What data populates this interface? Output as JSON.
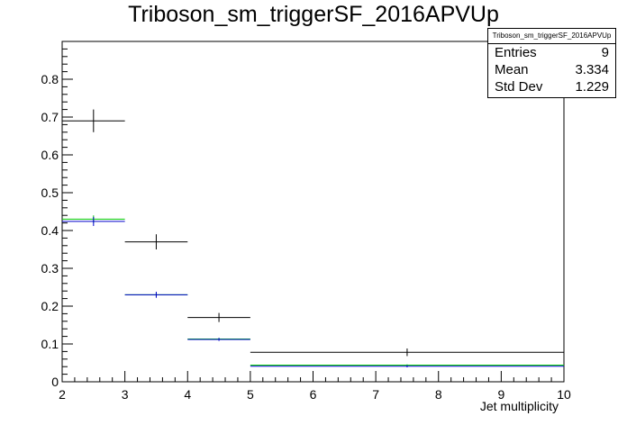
{
  "title": "Triboson_sm_triggerSF_2016APVUp",
  "stats": {
    "name": "Triboson_sm_triggerSF_2016APVUp",
    "rows": [
      {
        "label": "Entries",
        "value": "9"
      },
      {
        "label": "Mean",
        "value": "3.334"
      },
      {
        "label": "Std Dev",
        "value": "1.229"
      }
    ]
  },
  "chart_data": {
    "type": "histogram",
    "title": "Triboson_sm_triggerSF_2016APVUp",
    "xlabel": "Jet multiplicity",
    "ylabel": "",
    "xlim": [
      2,
      10
    ],
    "ylim": [
      0,
      0.9
    ],
    "xticks": [
      "2",
      "3",
      "4",
      "5",
      "6",
      "7",
      "8",
      "9",
      "10"
    ],
    "yticks": [
      "0",
      "0.1",
      "0.2",
      "0.3",
      "0.4",
      "0.5",
      "0.6",
      "0.7",
      "0.8"
    ],
    "bins": [
      [
        2,
        3
      ],
      [
        3,
        4
      ],
      [
        4,
        5
      ],
      [
        5,
        10
      ]
    ],
    "series": [
      {
        "color": "#000000",
        "values": [
          0.69,
          0.37,
          0.17,
          0.078
        ],
        "errors": [
          0.03,
          0.02,
          0.012,
          0.01
        ]
      },
      {
        "color": "#00cc00",
        "values": [
          0.43,
          0.23,
          0.113,
          0.044
        ],
        "errors": [
          0.01,
          0.006,
          0.003,
          0.002
        ]
      },
      {
        "color": "#0000cc",
        "values": [
          0.424,
          0.23,
          0.112,
          0.041
        ],
        "errors": [
          0.012,
          0.008,
          0.004,
          0.003
        ]
      }
    ]
  }
}
